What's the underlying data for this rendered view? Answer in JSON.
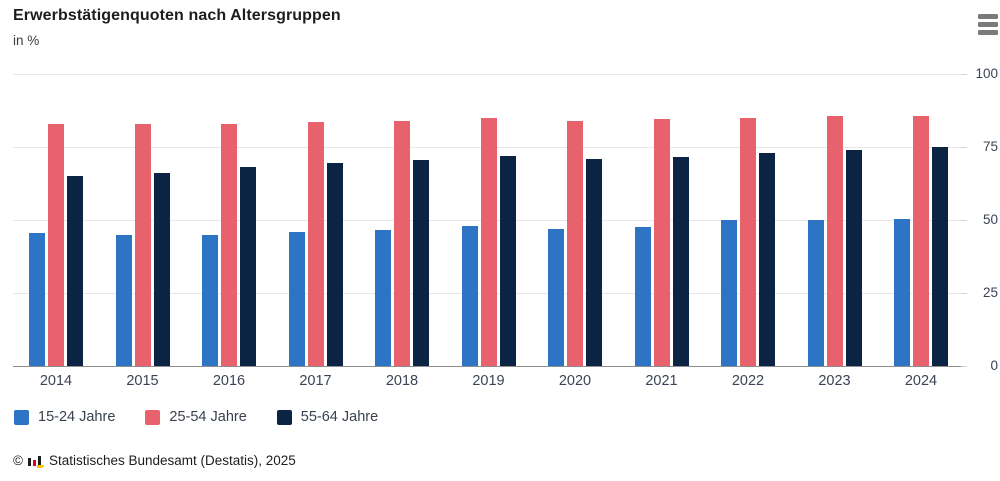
{
  "header": {
    "title": "Erwerbstätigenquoten nach Altersgruppen",
    "subtitle": "in %"
  },
  "menu": {
    "icon": "hamburger-menu-icon"
  },
  "chart_data": {
    "type": "bar",
    "title": "Erwerbstätigenquoten nach Altersgruppen",
    "ylabel": "in %",
    "categories": [
      "2014",
      "2015",
      "2016",
      "2017",
      "2018",
      "2019",
      "2020",
      "2021",
      "2022",
      "2023",
      "2024"
    ],
    "series": [
      {
        "name": "15-24 Jahre",
        "color": "#2e74c5",
        "values": [
          45.5,
          44.8,
          45.0,
          46.0,
          46.5,
          47.8,
          47.0,
          47.5,
          50.0,
          50.0,
          50.5
        ]
      },
      {
        "name": "25-54 Jahre",
        "color": "#e8626e",
        "values": [
          83.0,
          83.0,
          83.0,
          83.5,
          84.0,
          85.0,
          84.0,
          84.5,
          85.0,
          85.5,
          85.5
        ]
      },
      {
        "name": "55-64 Jahre",
        "color": "#0c2443",
        "values": [
          65.0,
          66.0,
          68.0,
          69.5,
          70.5,
          72.0,
          71.0,
          71.5,
          73.0,
          74.0,
          75.0
        ]
      }
    ],
    "y_axis": {
      "position": "right",
      "range": [
        0,
        100
      ],
      "ticks": [
        0,
        25,
        50,
        75,
        100
      ]
    },
    "grid": true,
    "legend_position": "bottom-left"
  },
  "footer": {
    "copyright": "©",
    "logo": "destatis-mini-barchart-logo",
    "source": "Statistisches Bundesamt (Destatis), 2025"
  }
}
